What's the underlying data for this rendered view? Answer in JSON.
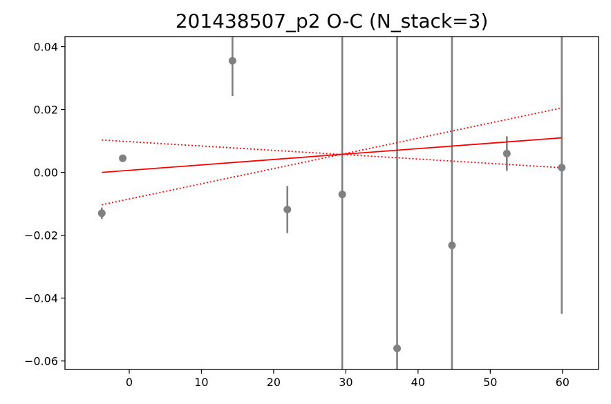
{
  "chart_data": {
    "type": "scatter",
    "title": "201438507_p2 O-C (N_stack=3)",
    "xlabel": "",
    "ylabel": "",
    "xlim": [
      -8.9,
      65.0
    ],
    "ylim": [
      -0.0627,
      0.0432
    ],
    "xticks": [
      0,
      10,
      20,
      30,
      40,
      50,
      60
    ],
    "yticks": [
      -0.06,
      -0.04,
      -0.02,
      0.0,
      0.02,
      0.04
    ],
    "ytick_labels": [
      "−0.06",
      "−0.04",
      "−0.02",
      "0.00",
      "0.02",
      "0.04"
    ],
    "grid": false,
    "points": {
      "color": "#808080",
      "x": [
        -3.8,
        -0.9,
        14.3,
        21.9,
        29.5,
        37.1,
        44.7,
        52.3,
        59.9
      ],
      "y": [
        -0.013,
        0.0045,
        0.0355,
        -0.0118,
        -0.007,
        -0.056,
        -0.0232,
        0.006,
        0.0015
      ],
      "yerr_low": [
        0.0018,
        0.0,
        0.0112,
        0.0075,
        1.0,
        1.0,
        1.0,
        0.0055,
        0.0465
      ],
      "yerr_high": [
        0.0018,
        0.0,
        1.0,
        0.0075,
        1.0,
        1.0,
        1.0,
        0.0055,
        1.0
      ]
    },
    "lines": [
      {
        "style": "solid",
        "color": "#ff0000",
        "x": [
          -3.8,
          59.9
        ],
        "y": [
          0.0,
          0.011
        ]
      },
      {
        "style": "dotted",
        "color": "#ff0000",
        "x": [
          -3.8,
          59.9
        ],
        "y": [
          -0.0103,
          0.0205
        ]
      },
      {
        "style": "dotted",
        "color": "#ff0000",
        "x": [
          -3.8,
          59.9
        ],
        "y": [
          0.0103,
          0.0015
        ]
      }
    ]
  }
}
